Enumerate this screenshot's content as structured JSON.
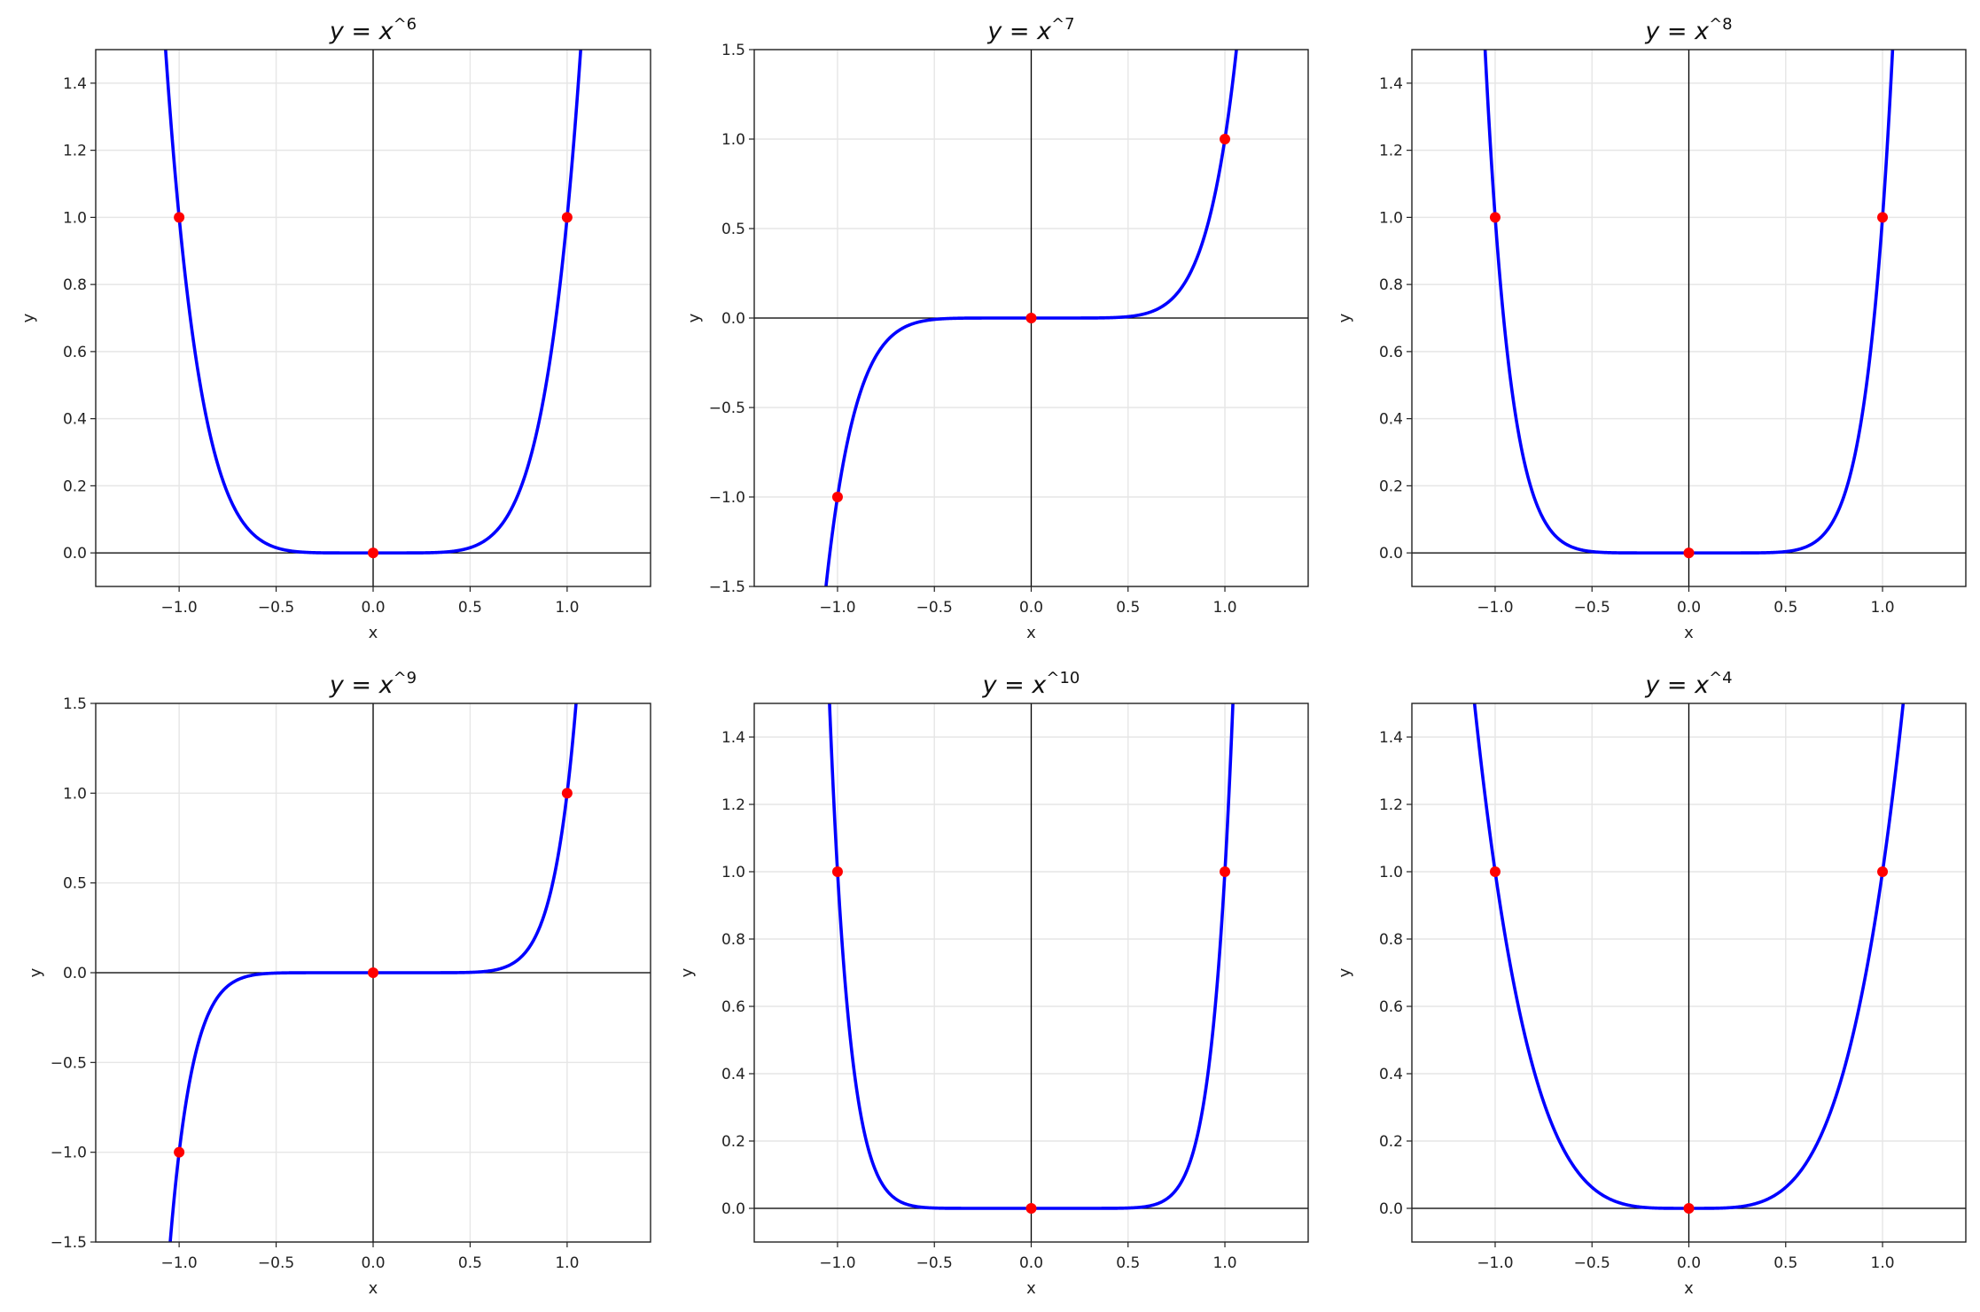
{
  "chart_data": [
    {
      "type": "line",
      "title": "y = x^6",
      "title_base": "y = x",
      "title_exp": "6",
      "xlabel": "x",
      "ylabel": "y",
      "xlim": [
        -1.43,
        1.43
      ],
      "ylim": [
        -0.1,
        1.5
      ],
      "exponent": 6,
      "xticks": [
        -1.0,
        -0.5,
        0.0,
        0.5,
        1.0
      ],
      "xtick_labels": [
        "−1.0",
        "−0.5",
        "0.0",
        "0.5",
        "1.0"
      ],
      "yticks": [
        0.0,
        0.2,
        0.4,
        0.6,
        0.8,
        1.0,
        1.2,
        1.4
      ],
      "ytick_labels": [
        "0.0",
        "0.2",
        "0.4",
        "0.6",
        "0.8",
        "1.0",
        "1.2",
        "1.4"
      ],
      "points": [
        [
          -1,
          1
        ],
        [
          0,
          0
        ],
        [
          1,
          1
        ]
      ],
      "grid": true
    },
    {
      "type": "line",
      "title": "y = x^7",
      "title_base": "y = x",
      "title_exp": "7",
      "xlabel": "x",
      "ylabel": "y",
      "xlim": [
        -1.43,
        1.43
      ],
      "ylim": [
        -1.5,
        1.5
      ],
      "exponent": 7,
      "xticks": [
        -1.0,
        -0.5,
        0.0,
        0.5,
        1.0
      ],
      "xtick_labels": [
        "−1.0",
        "−0.5",
        "0.0",
        "0.5",
        "1.0"
      ],
      "yticks": [
        -1.5,
        -1.0,
        -0.5,
        0.0,
        0.5,
        1.0,
        1.5
      ],
      "ytick_labels": [
        "−1.5",
        "−1.0",
        "−0.5",
        "0.0",
        "0.5",
        "1.0",
        "1.5"
      ],
      "points": [
        [
          -1,
          -1
        ],
        [
          0,
          0
        ],
        [
          1,
          1
        ]
      ],
      "grid": true
    },
    {
      "type": "line",
      "title": "y = x^8",
      "title_base": "y = x",
      "title_exp": "8",
      "xlabel": "x",
      "ylabel": "y",
      "xlim": [
        -1.43,
        1.43
      ],
      "ylim": [
        -0.1,
        1.5
      ],
      "exponent": 8,
      "xticks": [
        -1.0,
        -0.5,
        0.0,
        0.5,
        1.0
      ],
      "xtick_labels": [
        "−1.0",
        "−0.5",
        "0.0",
        "0.5",
        "1.0"
      ],
      "yticks": [
        0.0,
        0.2,
        0.4,
        0.6,
        0.8,
        1.0,
        1.2,
        1.4
      ],
      "ytick_labels": [
        "0.0",
        "0.2",
        "0.4",
        "0.6",
        "0.8",
        "1.0",
        "1.2",
        "1.4"
      ],
      "points": [
        [
          -1,
          1
        ],
        [
          0,
          0
        ],
        [
          1,
          1
        ]
      ],
      "grid": true
    },
    {
      "type": "line",
      "title": "y = x^9",
      "title_base": "y = x",
      "title_exp": "9",
      "xlabel": "x",
      "ylabel": "y",
      "xlim": [
        -1.43,
        1.43
      ],
      "ylim": [
        -1.5,
        1.5
      ],
      "exponent": 9,
      "xticks": [
        -1.0,
        -0.5,
        0.0,
        0.5,
        1.0
      ],
      "xtick_labels": [
        "−1.0",
        "−0.5",
        "0.0",
        "0.5",
        "1.0"
      ],
      "yticks": [
        -1.5,
        -1.0,
        -0.5,
        0.0,
        0.5,
        1.0,
        1.5
      ],
      "ytick_labels": [
        "−1.5",
        "−1.0",
        "−0.5",
        "0.0",
        "0.5",
        "1.0",
        "1.5"
      ],
      "points": [
        [
          -1,
          -1
        ],
        [
          0,
          0
        ],
        [
          1,
          1
        ]
      ],
      "grid": true
    },
    {
      "type": "line",
      "title": "y = x^10",
      "title_base": "y = x",
      "title_exp": "10",
      "xlabel": "x",
      "ylabel": "y",
      "xlim": [
        -1.43,
        1.43
      ],
      "ylim": [
        -0.1,
        1.5
      ],
      "exponent": 10,
      "xticks": [
        -1.0,
        -0.5,
        0.0,
        0.5,
        1.0
      ],
      "xtick_labels": [
        "−1.0",
        "−0.5",
        "0.0",
        "0.5",
        "1.0"
      ],
      "yticks": [
        0.0,
        0.2,
        0.4,
        0.6,
        0.8,
        1.0,
        1.2,
        1.4
      ],
      "ytick_labels": [
        "0.0",
        "0.2",
        "0.4",
        "0.6",
        "0.8",
        "1.0",
        "1.2",
        "1.4"
      ],
      "points": [
        [
          -1,
          1
        ],
        [
          0,
          0
        ],
        [
          1,
          1
        ]
      ],
      "grid": true
    },
    {
      "type": "line",
      "title": "y = x^4",
      "title_base": "y = x",
      "title_exp": "4",
      "xlabel": "x",
      "ylabel": "y",
      "xlim": [
        -1.43,
        1.43
      ],
      "ylim": [
        -0.1,
        1.5
      ],
      "exponent": 4,
      "xticks": [
        -1.0,
        -0.5,
        0.0,
        0.5,
        1.0
      ],
      "xtick_labels": [
        "−1.0",
        "−0.5",
        "0.0",
        "0.5",
        "1.0"
      ],
      "yticks": [
        0.0,
        0.2,
        0.4,
        0.6,
        0.8,
        1.0,
        1.2,
        1.4
      ],
      "ytick_labels": [
        "0.0",
        "0.2",
        "0.4",
        "0.6",
        "0.8",
        "1.0",
        "1.2",
        "1.4"
      ],
      "points": [
        [
          -1,
          1
        ],
        [
          0,
          0
        ],
        [
          1,
          1
        ]
      ],
      "grid": true
    }
  ],
  "colors": {
    "curve": "#0000ff",
    "points": "#ff0000",
    "grid": "#e6e6e6",
    "axes": "#000000"
  }
}
